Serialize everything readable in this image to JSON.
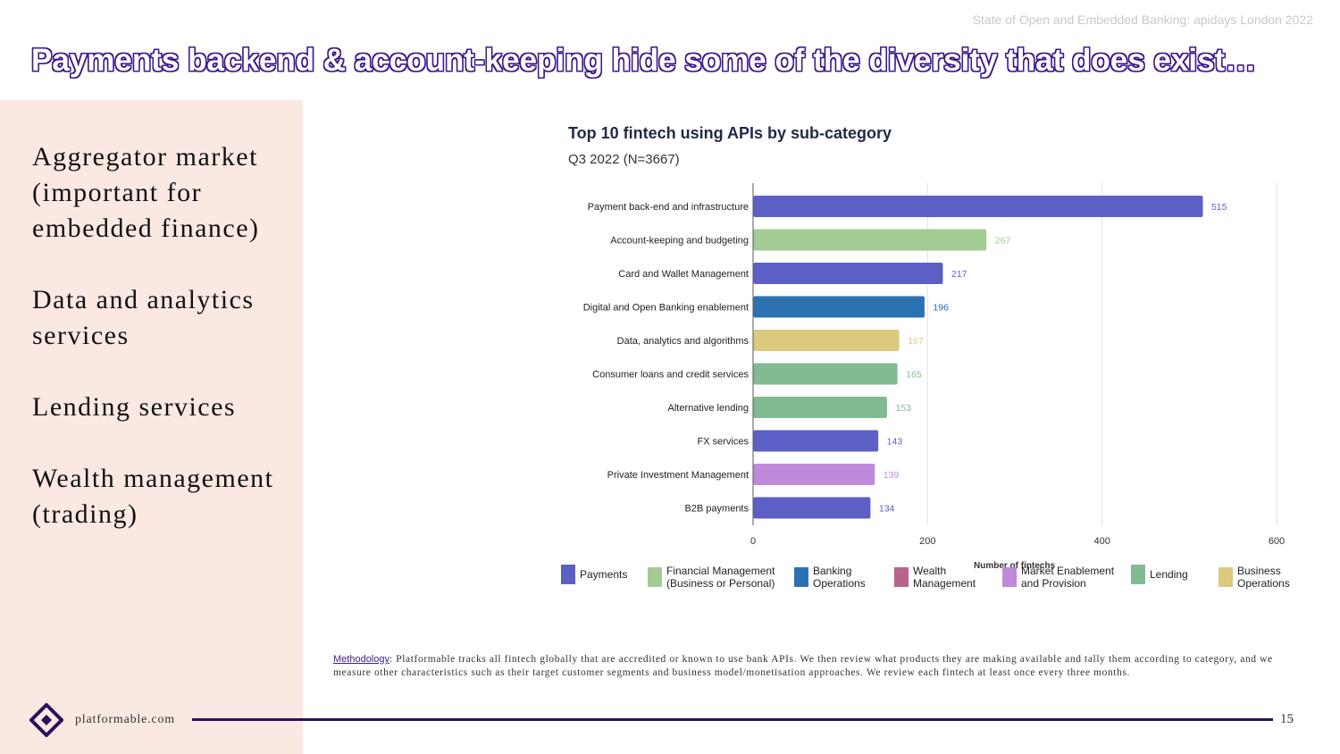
{
  "header_note": "State of Open and Embedded Banking: apidays London 2022",
  "slide_title": "Payments backend & account-keeping hide some of the diversity that does exist…",
  "left_panel": {
    "items": [
      "Aggregator market (important for embedded finance)",
      "Data and analytics services",
      "Lending services",
      "Wealth management (trading)"
    ]
  },
  "chart_data": {
    "type": "bar",
    "orientation": "horizontal",
    "title": "Top 10 fintech using APIs by sub-category",
    "subtitle": "Q3 2022 (N=3667)",
    "xlabel": "Number of fintechs",
    "ylabel": "",
    "xlim": [
      0,
      600
    ],
    "xticks": [
      "0",
      "200",
      "400",
      "600"
    ],
    "grid": true,
    "categories": [
      "Payment back-end and infrastructure",
      "Account-keeping and budgeting",
      "Card and Wallet Management",
      "Digital and Open Banking enablement",
      "Data, analytics and algorithms",
      "Consumer loans and credit services",
      "Alternative lending",
      "FX services",
      "Private Investment Management",
      "B2B payments"
    ],
    "values": [
      515,
      267,
      217,
      196,
      167,
      165,
      153,
      143,
      139,
      134
    ],
    "bar_groups": [
      "Payments",
      "Financial Management (Business or Personal)",
      "Payments",
      "Banking Operations",
      "Business Operations",
      "Lending",
      "Lending",
      "Payments",
      "Market Enablement and Provision",
      "Payments"
    ],
    "legend": [
      {
        "name": "Payments",
        "color": "#5c5fc4"
      },
      {
        "name": "Financial Management (Business or Personal)",
        "color": "#a3cb94"
      },
      {
        "name": "Banking Operations",
        "color": "#2c72b3"
      },
      {
        "name": "Wealth Management",
        "color": "#b8638a"
      },
      {
        "name": "Market Enablement and Provision",
        "color": "#bf8ad9"
      },
      {
        "name": "Lending",
        "color": "#82bb92"
      },
      {
        "name": "Business Operations",
        "color": "#dcca7e"
      }
    ],
    "legend_position": "bottom"
  },
  "methodology": {
    "label": "Methodology",
    "text": ": Platformable tracks all fintech globally that are accredited or known to use bank APIs. We then review what products they are making available and tally them according to category, and we measure other characteristics such as their target customer segments and business model/monetisation approaches. We review each fintech at least once every three months."
  },
  "footer": {
    "site": "platformable.com",
    "page_number": "15"
  },
  "colors": {
    "brand_purple": "#3d1a8a",
    "panel_bg": "#fce8e3"
  }
}
